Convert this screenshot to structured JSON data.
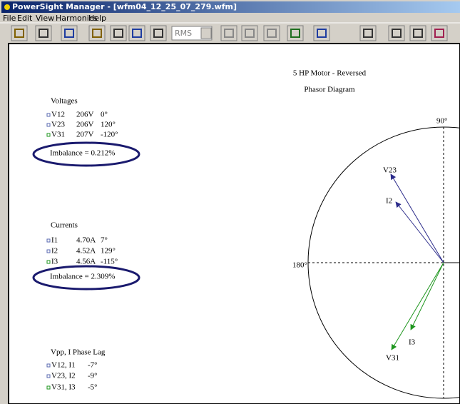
{
  "window": {
    "title": "PowerSight Manager - [wfm04_12_25_07_279.wfm]"
  },
  "menu": [
    "File",
    "Edit",
    "View",
    "Harmonics",
    "Help"
  ],
  "toolbar": {
    "mode": "RMS"
  },
  "document": {
    "title": "5 HP Motor - Reversed",
    "subtitle": "Phasor Diagram",
    "voltages": {
      "heading": "Voltages",
      "rows": [
        [
          "V12",
          "206V",
          "0°"
        ],
        [
          "V23",
          "206V",
          "120°"
        ],
        [
          "V31",
          "207V",
          "-120°"
        ]
      ],
      "imbalance": "Imbalance = 0.212%"
    },
    "currents": {
      "heading": "Currents",
      "rows": [
        [
          "I1",
          "4.70A",
          "7°"
        ],
        [
          "I2",
          "4.52A",
          "129°"
        ],
        [
          "I3",
          "4.56A",
          "-115°"
        ]
      ],
      "imbalance": "Imbalance = 2.309%"
    },
    "phase_lag": {
      "heading": "Vpp, I Phase Lag",
      "rows": [
        [
          "V12, I1",
          "-7°"
        ],
        [
          "V23, I2",
          "-9°"
        ],
        [
          "V31, I3",
          "-5°"
        ]
      ]
    },
    "diagram": {
      "axis_labels": [
        "90°",
        "180°"
      ],
      "phasor_labels": [
        "V23",
        "I2",
        "I3",
        "V31"
      ]
    }
  }
}
